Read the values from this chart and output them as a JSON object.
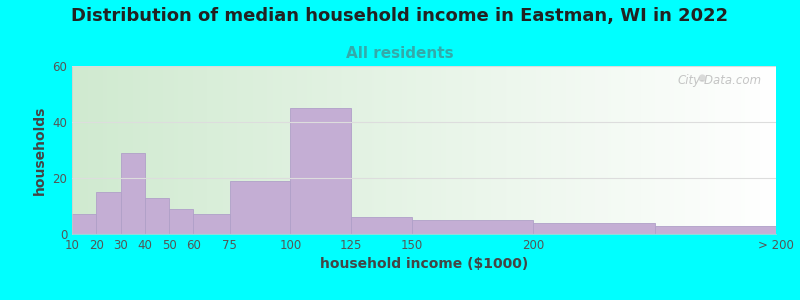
{
  "title": "Distribution of median household income in Eastman, WI in 2022",
  "subtitle": "All residents",
  "xlabel": "household income ($1000)",
  "ylabel": "households",
  "background_outer": "#00FFFF",
  "bar_color": "#C4AED4",
  "bar_edge_color": "#B0A0C8",
  "bin_edges": [
    10,
    20,
    30,
    40,
    50,
    60,
    75,
    100,
    125,
    150,
    200,
    250,
    300
  ],
  "tick_positions": [
    10,
    20,
    30,
    40,
    50,
    60,
    75,
    100,
    125,
    150,
    200,
    300
  ],
  "tick_labels": [
    "10",
    "20",
    "30",
    "40",
    "50",
    "60",
    "75",
    "100",
    "125",
    "150",
    "200",
    "> 200"
  ],
  "values": [
    7,
    15,
    29,
    13,
    9,
    7,
    19,
    45,
    6,
    5,
    4,
    3
  ],
  "ylim": [
    0,
    60
  ],
  "yticks": [
    0,
    20,
    40,
    60
  ],
  "title_fontsize": 13,
  "subtitle_fontsize": 11,
  "axis_label_fontsize": 10,
  "tick_fontsize": 8.5,
  "watermark_text": "City-Data.com",
  "grid_color": "#dddddd",
  "bg_color_left": "#d4ecd4",
  "bg_color_right": "#ffffff"
}
